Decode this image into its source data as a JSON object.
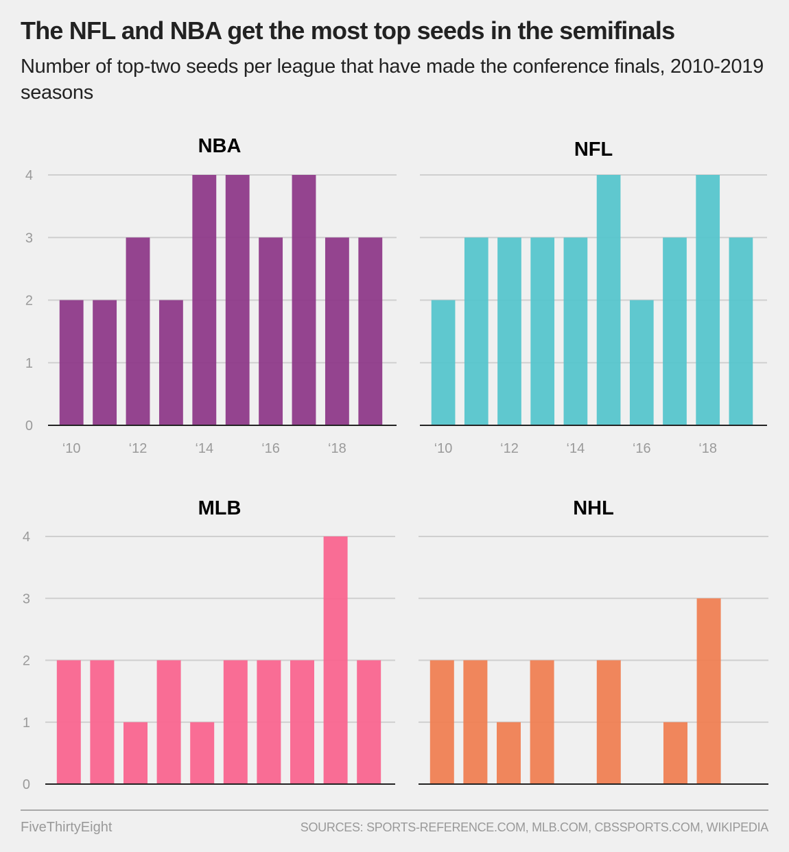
{
  "header": {
    "title": "The NFL and NBA get the most top seeds in the semifinals",
    "subtitle": "Number of top-two seeds per league that have made the conference finals, 2010-2019 seasons"
  },
  "footer": {
    "brand": "FiveThirtyEight",
    "sources": "SOURCES: SPORTS-REFERENCE.COM, MLB.COM, CBSSPORTS.COM, WIKIPEDIA"
  },
  "chart_data": [
    {
      "type": "bar",
      "title": "NBA",
      "color": "#8e3a89",
      "categories": [
        "2010",
        "2011",
        "2012",
        "2013",
        "2014",
        "2015",
        "2016",
        "2017",
        "2018",
        "2019"
      ],
      "x_tick_labels": [
        "‘10",
        "‘12",
        "‘14",
        "‘16",
        "‘18"
      ],
      "x_tick_positions": [
        0,
        2,
        4,
        6,
        8
      ],
      "values": [
        2,
        2,
        3,
        2,
        4,
        4,
        3,
        4,
        3,
        3
      ],
      "y_ticks": [
        "0",
        "1",
        "2",
        "3",
        "4"
      ],
      "show_y_labels": true,
      "show_x_labels": true,
      "ylim": [
        0,
        4
      ],
      "xlabel": "",
      "ylabel": "",
      "grid": true
    },
    {
      "type": "bar",
      "title": "NFL",
      "color": "#56c5cc",
      "categories": [
        "2010",
        "2011",
        "2012",
        "2013",
        "2014",
        "2015",
        "2016",
        "2017",
        "2018",
        "2019"
      ],
      "x_tick_labels": [
        "‘10",
        "‘12",
        "‘14",
        "‘16",
        "‘18"
      ],
      "x_tick_positions": [
        0,
        2,
        4,
        6,
        8
      ],
      "values": [
        2,
        3,
        3,
        3,
        3,
        4,
        2,
        3,
        4,
        3
      ],
      "y_ticks": [
        "0",
        "1",
        "2",
        "3",
        "4"
      ],
      "show_y_labels": false,
      "show_x_labels": true,
      "ylim": [
        0,
        4
      ],
      "xlabel": "",
      "ylabel": "",
      "grid": true
    },
    {
      "type": "bar",
      "title": "MLB",
      "color": "#f9658f",
      "categories": [
        "2010",
        "2011",
        "2012",
        "2013",
        "2014",
        "2015",
        "2016",
        "2017",
        "2018",
        "2019"
      ],
      "x_tick_labels": [],
      "x_tick_positions": [],
      "values": [
        2,
        2,
        1,
        2,
        1,
        2,
        2,
        2,
        4,
        2
      ],
      "y_ticks": [
        "0",
        "1",
        "2",
        "3",
        "4"
      ],
      "show_y_labels": true,
      "show_x_labels": false,
      "ylim": [
        0,
        4
      ],
      "xlabel": "",
      "ylabel": "",
      "grid": true
    },
    {
      "type": "bar",
      "title": "NHL",
      "color": "#ef8053",
      "categories": [
        "2010",
        "2011",
        "2012",
        "2013",
        "2014",
        "2015",
        "2016",
        "2017",
        "2018",
        "2019"
      ],
      "x_tick_labels": [],
      "x_tick_positions": [],
      "values": [
        2,
        2,
        1,
        2,
        0,
        2,
        0,
        1,
        3,
        0
      ],
      "y_ticks": [
        "0",
        "1",
        "2",
        "3",
        "4"
      ],
      "show_y_labels": false,
      "show_x_labels": false,
      "ylim": [
        0,
        4
      ],
      "xlabel": "",
      "ylabel": "",
      "grid": true
    }
  ]
}
